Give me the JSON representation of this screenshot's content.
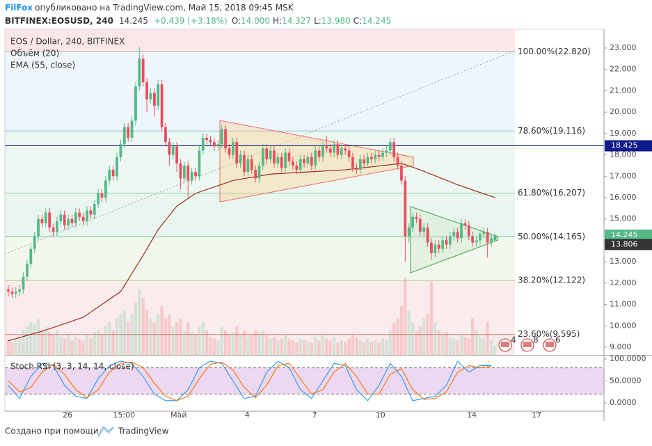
{
  "header": {
    "author": "FilFox",
    "published": "опубликовано на TradingView.com, Май 15, 2018 09:45 MSK",
    "symbol": "BITFINEX:EOSUSD, 240",
    "last": "14.245",
    "change": "+0.439 (+3.18%)",
    "ohlc": [
      {
        "key": "O:",
        "value": "14.000"
      },
      {
        "key": "H:",
        "value": "14.327"
      },
      {
        "key": "L:",
        "value": "13.980"
      },
      {
        "key": "C:",
        "value": "14.245"
      }
    ]
  },
  "chart_data": [
    {
      "type": "candlestick",
      "title": "EOS / Dollar, 240, BITFINEX",
      "up_color": "#53b987",
      "down_color": "#eb4d5c",
      "open": [
        11.7,
        11.6,
        11.5,
        11.6,
        11.7,
        12.3,
        12.9,
        13.6,
        14.2,
        15.0,
        14.8,
        15.3,
        14.6,
        14.4,
        14.9,
        15.2,
        14.7,
        15.0,
        14.8,
        15.3,
        15.1,
        14.9,
        15.4,
        15.2,
        15.7,
        16.2,
        16.0,
        16.8,
        17.3,
        17.0,
        17.9,
        18.5,
        19.3,
        18.8,
        19.6,
        21.2,
        22.5,
        21.4,
        20.6,
        20.9,
        20.3,
        21.3,
        19.3,
        18.6,
        18.0,
        18.4,
        17.6,
        16.9,
        17.5,
        16.8,
        17.2,
        17.0,
        18.2,
        18.8,
        18.7,
        18.6,
        18.4,
        18.5,
        19.2,
        18.3,
        18.0,
        18.6,
        17.6,
        18.0,
        17.2,
        17.8,
        17.3,
        16.9,
        17.5,
        18.3,
        17.8,
        18.2,
        17.6,
        17.9,
        17.4,
        18.1,
        17.7,
        17.5,
        17.3,
        17.8,
        17.6,
        17.9,
        17.5,
        18.2,
        17.9,
        18.4,
        18.3,
        18.1,
        18.5,
        18.0,
        18.3,
        18.2,
        17.9,
        17.4,
        17.3,
        17.8,
        17.6,
        17.9,
        17.8,
        18.0,
        17.9,
        18.1,
        18.2,
        18.6,
        17.9,
        17.5,
        16.8,
        14.2,
        14.6,
        15.1,
        15.0,
        14.4,
        14.6,
        13.9,
        13.4,
        13.8,
        13.6,
        14.0,
        13.8,
        14.2,
        14.4,
        14.1,
        14.8,
        14.7,
        14.2,
        13.9,
        14.0,
        14.3,
        14.4,
        13.9,
        14.0
      ],
      "high": [
        11.9,
        11.8,
        11.8,
        11.9,
        12.5,
        13.1,
        13.8,
        14.4,
        15.2,
        15.2,
        15.5,
        15.5,
        14.8,
        15.1,
        15.4,
        15.4,
        15.2,
        15.2,
        15.5,
        15.5,
        15.3,
        15.6,
        15.6,
        15.9,
        16.4,
        16.4,
        17.0,
        17.5,
        17.5,
        18.1,
        18.7,
        19.5,
        19.5,
        19.8,
        21.4,
        23.05,
        22.7,
        21.6,
        21.1,
        21.1,
        21.5,
        21.5,
        19.5,
        18.8,
        18.6,
        18.6,
        17.8,
        17.7,
        17.7,
        17.4,
        17.4,
        18.4,
        19.0,
        19.0,
        18.9,
        18.8,
        18.7,
        19.4,
        19.4,
        18.5,
        18.8,
        18.8,
        18.2,
        18.2,
        18.0,
        18.0,
        17.5,
        17.7,
        18.5,
        18.5,
        18.4,
        18.4,
        18.1,
        18.1,
        18.3,
        18.3,
        17.9,
        17.7,
        18.0,
        18.0,
        18.1,
        18.1,
        18.4,
        18.4,
        18.6,
        18.9,
        18.5,
        18.7,
        18.7,
        18.5,
        18.5,
        18.4,
        18.1,
        17.6,
        18.0,
        18.0,
        18.1,
        18.1,
        18.2,
        18.2,
        18.3,
        18.4,
        18.8,
        18.8,
        18.1,
        17.7,
        17.0,
        14.8,
        15.3,
        15.3,
        15.2,
        14.8,
        14.8,
        14.1,
        14.0,
        14.0,
        14.2,
        14.2,
        14.4,
        14.6,
        14.6,
        15.0,
        15.0,
        14.9,
        14.4,
        14.2,
        14.5,
        14.6,
        14.6,
        14.3,
        14.327
      ],
      "low": [
        11.4,
        11.3,
        11.3,
        11.4,
        11.5,
        12.1,
        12.7,
        13.4,
        14.0,
        14.6,
        14.6,
        14.4,
        14.2,
        14.2,
        14.7,
        14.5,
        14.5,
        14.6,
        14.6,
        14.9,
        14.7,
        14.7,
        15.0,
        15.0,
        15.5,
        15.8,
        15.8,
        16.6,
        16.8,
        16.8,
        17.7,
        18.3,
        18.6,
        18.6,
        19.4,
        21.0,
        21.2,
        20.0,
        20.4,
        19.8,
        20.1,
        19.1,
        18.4,
        17.5,
        17.8,
        17.2,
        16.4,
        16.7,
        16.0,
        16.6,
        16.8,
        16.8,
        18.0,
        18.5,
        18.4,
        18.2,
        18.2,
        18.3,
        18.1,
        17.8,
        17.8,
        17.4,
        17.4,
        17.0,
        17.0,
        17.1,
        16.7,
        16.7,
        17.3,
        17.6,
        17.6,
        17.4,
        17.4,
        17.2,
        17.2,
        17.5,
        17.3,
        17.1,
        17.1,
        17.4,
        17.4,
        17.3,
        17.3,
        17.7,
        17.7,
        18.1,
        17.9,
        17.9,
        17.8,
        17.8,
        18.0,
        17.7,
        17.2,
        17.1,
        17.1,
        17.4,
        17.4,
        17.6,
        17.6,
        17.7,
        17.7,
        17.9,
        18.0,
        17.7,
        17.3,
        16.6,
        13.0,
        13.9,
        14.4,
        14.8,
        14.2,
        14.2,
        13.7,
        13.1,
        13.2,
        13.4,
        13.4,
        13.6,
        13.6,
        14.0,
        13.9,
        13.9,
        14.5,
        14.0,
        13.7,
        13.7,
        13.8,
        14.1,
        13.2,
        13.7,
        13.98
      ],
      "close": [
        11.6,
        11.5,
        11.6,
        11.7,
        12.3,
        12.9,
        13.6,
        14.2,
        15.0,
        14.8,
        15.3,
        14.6,
        14.4,
        14.9,
        15.2,
        14.7,
        15.0,
        14.8,
        15.3,
        15.1,
        14.9,
        15.4,
        15.2,
        15.7,
        16.2,
        16.0,
        16.8,
        17.3,
        17.0,
        17.9,
        18.5,
        19.3,
        18.8,
        19.6,
        21.2,
        22.5,
        21.4,
        20.6,
        20.9,
        20.3,
        21.3,
        19.3,
        18.6,
        18.0,
        18.4,
        17.6,
        16.9,
        17.5,
        16.8,
        17.2,
        17.0,
        18.2,
        18.8,
        18.7,
        18.6,
        18.4,
        18.5,
        19.2,
        18.3,
        18.0,
        18.6,
        17.6,
        18.0,
        17.2,
        17.8,
        17.3,
        16.9,
        17.5,
        18.3,
        17.8,
        18.2,
        17.6,
        17.9,
        17.4,
        18.1,
        17.7,
        17.5,
        17.3,
        17.8,
        17.6,
        17.9,
        17.5,
        18.2,
        17.9,
        18.4,
        18.3,
        18.1,
        18.5,
        18.0,
        18.3,
        18.2,
        17.9,
        17.4,
        17.3,
        17.8,
        17.6,
        17.9,
        17.8,
        18.0,
        17.9,
        18.1,
        18.2,
        18.6,
        17.9,
        17.5,
        16.8,
        14.2,
        14.6,
        15.1,
        15.0,
        14.4,
        14.6,
        13.9,
        13.4,
        13.8,
        13.6,
        14.0,
        13.8,
        14.2,
        14.4,
        14.1,
        14.8,
        14.7,
        14.2,
        13.9,
        14.0,
        14.3,
        14.4,
        13.9,
        14.1,
        14.245
      ],
      "volume": {
        "name": "Объём (20)",
        "ylim": [
          0,
          400
        ],
        "values": [
          20,
          15,
          18,
          22,
          30,
          35,
          40,
          38,
          45,
          30,
          35,
          28,
          25,
          30,
          22,
          20,
          25,
          18,
          22,
          20,
          18,
          25,
          20,
          28,
          30,
          25,
          35,
          40,
          30,
          45,
          50,
          55,
          40,
          50,
          65,
          80,
          70,
          55,
          45,
          40,
          50,
          60,
          45,
          50,
          35,
          40,
          45,
          30,
          40,
          28,
          25,
          35,
          40,
          30,
          22,
          20,
          18,
          35,
          30,
          25,
          28,
          35,
          25,
          30,
          22,
          25,
          30,
          28,
          30,
          25,
          20,
          22,
          18,
          20,
          25,
          20,
          18,
          15,
          20,
          18,
          16,
          15,
          22,
          18,
          25,
          20,
          18,
          22,
          15,
          18,
          16,
          20,
          25,
          22,
          18,
          15,
          20,
          16,
          18,
          15,
          20,
          18,
          30,
          40,
          45,
          60,
          95,
          55,
          40,
          30,
          35,
          45,
          50,
          90,
          40,
          30,
          25,
          28,
          22,
          20,
          18,
          25,
          22,
          20,
          45,
          30,
          22,
          20,
          40,
          18,
          12
        ]
      },
      "ema": {
        "name": "EMA (55, close)",
        "color": "#9c2a1a",
        "x": [
          0,
          10,
          20,
          30,
          36,
          40,
          45,
          50,
          60,
          70,
          80,
          90,
          100,
          105,
          110,
          120,
          130
        ],
        "values": [
          9.3,
          9.8,
          10.4,
          11.6,
          13.3,
          14.5,
          15.6,
          16.2,
          16.8,
          17.1,
          17.2,
          17.3,
          17.5,
          17.6,
          17.3,
          16.6,
          16.0
        ]
      },
      "fib": [
        {
          "label": "100.00%(22.820)",
          "value": 22.82,
          "color": "#888888"
        },
        {
          "label": "78.60%(19.116)",
          "value": 19.116,
          "color": "#3d8fd1"
        },
        {
          "label": "61.80%(16.207)",
          "value": 16.207,
          "color": "#34b36b"
        },
        {
          "label": "50.00%(14.165)",
          "value": 14.165,
          "color": "#0f9d58"
        },
        {
          "label": "38.20%(12.122)",
          "value": 12.122,
          "color": "#7cb342"
        },
        {
          "label": "23.60%(9.595)",
          "value": 9.595,
          "color": "#c62828"
        }
      ],
      "trendline": {
        "x": [
          -0.9,
          135.3
        ],
        "y": [
          13.36,
          22.87
        ],
        "color": "#9e9e9e"
      },
      "triangles": [
        {
          "x": [
            56.5,
            108.2,
            108.2,
            56.5
          ],
          "y": [
            19.61,
            17.89,
            17.5,
            15.8
          ],
          "color": "#ef6c6c",
          "fill": "#ffcc80"
        },
        {
          "x": [
            107.4,
            130.7,
            130.7,
            107.4
          ],
          "y": [
            15.58,
            14.18,
            14.01,
            12.48
          ],
          "color": "#43a047",
          "fill": "#c8e6c9"
        }
      ],
      "hline": {
        "value": 18.425,
        "color": "#0d1a8c"
      },
      "price_labels": [
        {
          "value": 18.425,
          "color": "#0d1a8c"
        },
        {
          "value": 14.245,
          "color": "#53b987"
        },
        {
          "value": 13.806,
          "color": "#333333"
        }
      ],
      "events": [
        4,
        8,
        6
      ],
      "xlim": [
        -0.93,
        159.1
      ],
      "xticks": [
        {
          "value": 15.8,
          "label": "26"
        },
        {
          "value": 30.9,
          "label": "15:00"
        },
        {
          "value": 45.5,
          "label": "Май"
        },
        {
          "value": 63.8,
          "label": "4"
        },
        {
          "value": 81.8,
          "label": "7"
        },
        {
          "value": 99.4,
          "label": "10"
        },
        {
          "value": 123.8,
          "label": "14"
        },
        {
          "value": 141.1,
          "label": "17"
        }
      ],
      "ylim": [
        8.642,
        23.879
      ],
      "yticks": [
        {
          "value": 9,
          "label": "9.000"
        },
        {
          "value": 10,
          "label": "10.000"
        },
        {
          "value": 11,
          "label": "11.000"
        },
        {
          "value": 12,
          "label": "12.000"
        },
        {
          "value": 13,
          "label": "13.000"
        },
        {
          "value": 14,
          "label": "14.000"
        },
        {
          "value": 15,
          "label": "15.000"
        },
        {
          "value": 16,
          "label": "16.000"
        },
        {
          "value": 17,
          "label": "17.000"
        },
        {
          "value": 18,
          "label": "18.000"
        },
        {
          "value": 19,
          "label": "19.000"
        },
        {
          "value": 20,
          "label": "20.000"
        },
        {
          "value": 21,
          "label": "21.000"
        },
        {
          "value": 22,
          "label": "22.000"
        },
        {
          "value": 23,
          "label": "23.000"
        }
      ]
    },
    {
      "type": "line",
      "title": "Stoch RSI (3, 3, 14, 14, close)",
      "x": [
        0,
        3,
        6,
        9,
        12,
        15,
        18,
        21,
        24,
        27,
        30,
        33,
        36,
        39,
        42,
        45,
        48,
        51,
        54,
        57,
        60,
        63,
        66,
        69,
        72,
        75,
        78,
        81,
        84,
        87,
        90,
        93,
        96,
        99,
        102,
        105,
        108,
        111,
        114,
        117,
        120,
        123,
        126,
        129
      ],
      "series": [
        {
          "color": "#2196f3",
          "values": [
            40,
            10,
            60,
            90,
            85,
            40,
            15,
            10,
            55,
            85,
            95,
            90,
            60,
            20,
            5,
            5,
            30,
            80,
            95,
            90,
            50,
            10,
            15,
            70,
            95,
            80,
            30,
            10,
            50,
            90,
            85,
            30,
            5,
            40,
            90,
            60,
            5,
            10,
            15,
            40,
            95,
            70,
            85,
            85
          ]
        },
        {
          "color": "#ff6d00",
          "values": [
            50,
            25,
            35,
            70,
            88,
            65,
            30,
            12,
            30,
            70,
            90,
            93,
            80,
            45,
            15,
            5,
            15,
            55,
            88,
            93,
            75,
            35,
            12,
            40,
            85,
            90,
            55,
            20,
            30,
            70,
            90,
            60,
            20,
            20,
            65,
            78,
            30,
            8,
            10,
            25,
            70,
            85,
            80,
            83
          ]
        }
      ],
      "bands": [
        20,
        80
      ],
      "band_color": "#9c27b0",
      "xlim": [
        -0.93,
        159.1
      ],
      "ylim": [
        -17.5,
        107.9
      ],
      "yticks": [
        {
          "value": 0,
          "label": "0.0000"
        },
        {
          "value": 50,
          "label": "50.0000"
        },
        {
          "value": 100,
          "label": "100.0000"
        }
      ]
    }
  ],
  "footer": {
    "text": "Создано при помощи",
    "brand": "TradingView"
  }
}
